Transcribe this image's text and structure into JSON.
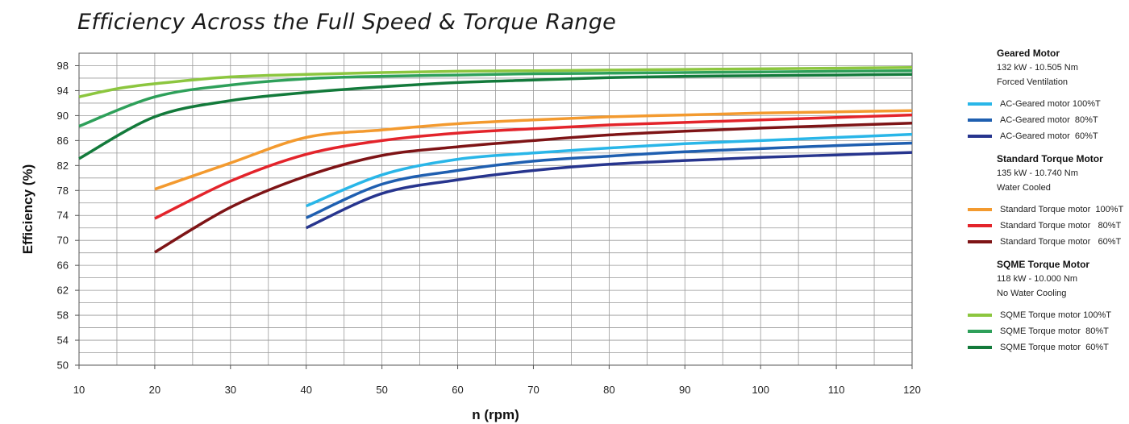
{
  "chart_data": {
    "type": "line",
    "title": "Efficiency Across the Full Speed & Torque Range",
    "xlabel": "n (rpm)",
    "ylabel": "Efficiency (%)",
    "xlim": [
      10,
      120
    ],
    "ylim": [
      50,
      100
    ],
    "x_ticks": [
      10,
      20,
      30,
      40,
      50,
      60,
      70,
      80,
      90,
      100,
      110,
      120
    ],
    "y_ticks": [
      50,
      54,
      58,
      62,
      66,
      70,
      74,
      78,
      82,
      86,
      90,
      94,
      98
    ],
    "grid": true,
    "legend_position": "right",
    "groups": [
      {
        "name": "Geared Motor",
        "specs": [
          "132 kW - 10.505 Nm",
          "Forced Ventilation"
        ]
      },
      {
        "name": "Standard Torque Motor",
        "specs": [
          "135 kW - 10.740 Nm",
          "Water Cooled"
        ]
      },
      {
        "name": "SQME Torque Motor",
        "specs": [
          "118 kW - 10.000 Nm",
          "No Water Cooling"
        ]
      }
    ],
    "series": [
      {
        "name": "AC-Geared motor 100%T",
        "group": 0,
        "color": "#29b6e8",
        "points": [
          [
            40,
            75.5
          ],
          [
            50,
            80.5
          ],
          [
            60,
            83.0
          ],
          [
            70,
            84.0
          ],
          [
            80,
            84.8
          ],
          [
            90,
            85.5
          ],
          [
            100,
            86.0
          ],
          [
            110,
            86.5
          ],
          [
            120,
            87.0
          ]
        ]
      },
      {
        "name": "AC-Geared motor  80%T",
        "group": 0,
        "color": "#1f5fb0",
        "points": [
          [
            40,
            73.6
          ],
          [
            50,
            79.0
          ],
          [
            60,
            81.2
          ],
          [
            70,
            82.7
          ],
          [
            80,
            83.5
          ],
          [
            90,
            84.2
          ],
          [
            100,
            84.7
          ],
          [
            110,
            85.2
          ],
          [
            120,
            85.6
          ]
        ]
      },
      {
        "name": "AC-Geared motor  60%T",
        "group": 0,
        "color": "#27358e",
        "points": [
          [
            40,
            72.0
          ],
          [
            50,
            77.5
          ],
          [
            60,
            79.7
          ],
          [
            70,
            81.2
          ],
          [
            80,
            82.2
          ],
          [
            90,
            82.8
          ],
          [
            100,
            83.3
          ],
          [
            110,
            83.7
          ],
          [
            120,
            84.1
          ]
        ]
      },
      {
        "name": "Standard Torque motor  100%T",
        "group": 1,
        "color": "#f39a2f",
        "points": [
          [
            20,
            78.2
          ],
          [
            30,
            82.4
          ],
          [
            40,
            86.5
          ],
          [
            50,
            87.7
          ],
          [
            60,
            88.7
          ],
          [
            70,
            89.3
          ],
          [
            80,
            89.8
          ],
          [
            90,
            90.1
          ],
          [
            100,
            90.4
          ],
          [
            110,
            90.6
          ],
          [
            120,
            90.8
          ]
        ]
      },
      {
        "name": "Standard Torque motor   80%T",
        "group": 1,
        "color": "#e3242b",
        "points": [
          [
            20,
            73.5
          ],
          [
            30,
            79.5
          ],
          [
            40,
            83.8
          ],
          [
            50,
            86.0
          ],
          [
            60,
            87.2
          ],
          [
            70,
            87.9
          ],
          [
            80,
            88.5
          ],
          [
            90,
            88.9
          ],
          [
            100,
            89.3
          ],
          [
            110,
            89.7
          ],
          [
            120,
            90.1
          ]
        ]
      },
      {
        "name": "Standard Torque motor   60%T",
        "group": 1,
        "color": "#7e1416",
        "points": [
          [
            20,
            68.1
          ],
          [
            30,
            75.3
          ],
          [
            40,
            80.3
          ],
          [
            50,
            83.6
          ],
          [
            60,
            85.0
          ],
          [
            70,
            86.0
          ],
          [
            80,
            86.9
          ],
          [
            90,
            87.5
          ],
          [
            100,
            88.0
          ],
          [
            110,
            88.4
          ],
          [
            120,
            88.8
          ]
        ]
      },
      {
        "name": "SQME Torque motor 100%T",
        "group": 2,
        "color": "#8cc63f",
        "points": [
          [
            10,
            93.0
          ],
          [
            15,
            94.3
          ],
          [
            20,
            95.1
          ],
          [
            30,
            96.2
          ],
          [
            40,
            96.6
          ],
          [
            50,
            96.9
          ],
          [
            60,
            97.1
          ],
          [
            70,
            97.2
          ],
          [
            80,
            97.3
          ],
          [
            90,
            97.4
          ],
          [
            100,
            97.5
          ],
          [
            110,
            97.6
          ],
          [
            120,
            97.7
          ]
        ]
      },
      {
        "name": "SQME Torque motor  80%T",
        "group": 2,
        "color": "#2ea05a",
        "points": [
          [
            10,
            88.3
          ],
          [
            20,
            93.0
          ],
          [
            30,
            94.9
          ],
          [
            40,
            95.9
          ],
          [
            50,
            96.3
          ],
          [
            60,
            96.5
          ],
          [
            70,
            96.7
          ],
          [
            80,
            96.8
          ],
          [
            90,
            96.9
          ],
          [
            100,
            97.0
          ],
          [
            110,
            97.1
          ],
          [
            120,
            97.2
          ]
        ]
      },
      {
        "name": "SQME Torque motor  60%T",
        "group": 2,
        "color": "#137a3b",
        "points": [
          [
            10,
            83.1
          ],
          [
            20,
            89.8
          ],
          [
            30,
            92.4
          ],
          [
            40,
            93.7
          ],
          [
            50,
            94.6
          ],
          [
            60,
            95.3
          ],
          [
            70,
            95.7
          ],
          [
            80,
            96.1
          ],
          [
            90,
            96.3
          ],
          [
            100,
            96.4
          ],
          [
            110,
            96.5
          ],
          [
            120,
            96.6
          ]
        ]
      }
    ]
  }
}
